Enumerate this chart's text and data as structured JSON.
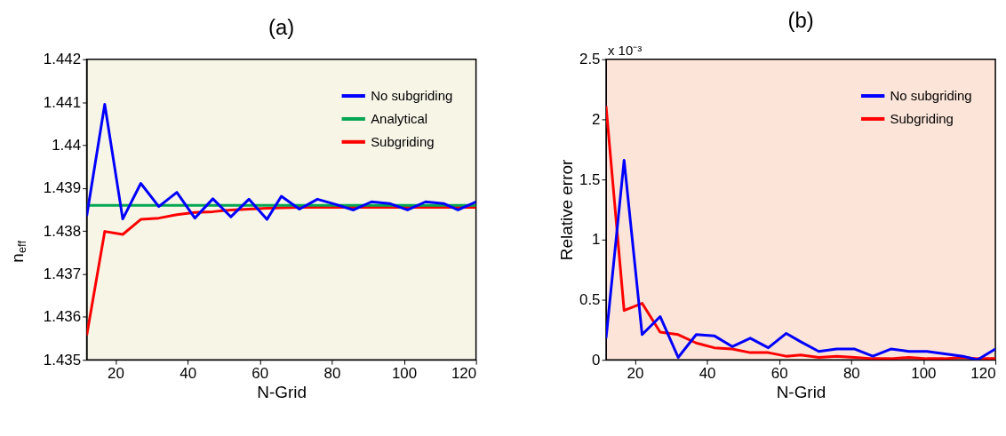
{
  "chart_data": [
    {
      "type": "line",
      "title": "(a)",
      "xlabel": "N-Grid",
      "ylabel": "n$_{eff}$",
      "x": [
        12,
        17,
        22,
        27,
        32,
        37,
        42,
        47,
        52,
        57,
        62,
        66,
        71,
        76,
        81,
        86,
        91,
        96,
        101,
        106,
        111,
        115,
        120
      ],
      "xlim": [
        12,
        120
      ],
      "xticks": [
        20,
        40,
        60,
        80,
        100,
        120
      ],
      "ylim": [
        1.435,
        1.442
      ],
      "yticks": [
        1.435,
        1.436,
        1.437,
        1.438,
        1.439,
        {
          "value": 1.44,
          "label": "1.44"
        },
        1.441,
        1.442
      ],
      "grid": false,
      "legend": "top right",
      "marker": "none",
      "line_style": "solid",
      "series": [
        {
          "name": "No subgriding",
          "color": "#0000ff",
          "values": [
            1.43835,
            1.44095,
            1.43828,
            1.43911,
            1.43857,
            1.4389,
            1.4383,
            1.43875,
            1.43833,
            1.43874,
            1.43827,
            1.43881,
            1.43851,
            1.43874,
            1.43862,
            1.43849,
            1.43868,
            1.43864,
            1.43849,
            1.43868,
            1.43864,
            1.43849,
            1.43868
          ]
        },
        {
          "name": "Analytical",
          "color": "#00a651",
          "values": [
            1.4386,
            1.4386,
            1.4386,
            1.4386,
            1.4386,
            1.4386,
            1.4386,
            1.4386,
            1.4386,
            1.4386,
            1.4386,
            1.4386,
            1.4386,
            1.4386,
            1.4386,
            1.4386,
            1.4386,
            1.4386,
            1.4386,
            1.4386,
            1.4386,
            1.4386,
            1.4386
          ]
        },
        {
          "name": "Subgriding",
          "color": "#ff0000",
          "values": [
            1.43557,
            1.43799,
            1.43792,
            1.43827,
            1.4383,
            1.43838,
            1.43843,
            1.43845,
            1.43849,
            1.43851,
            1.43853,
            1.43854,
            1.43855,
            1.43855,
            1.43855,
            1.43855,
            1.43855,
            1.43855,
            1.43855,
            1.43855,
            1.43855,
            1.43855,
            1.43855
          ]
        }
      ]
    },
    {
      "type": "line",
      "title": "(b)",
      "xlabel": "N-Grid",
      "ylabel": "Relative error",
      "annotations": [
        "x 10⁻³"
      ],
      "x": [
        12,
        17,
        22,
        27,
        32,
        37,
        42,
        47,
        52,
        57,
        62,
        66,
        71,
        76,
        81,
        86,
        91,
        96,
        101,
        106,
        111,
        115,
        120
      ],
      "xlim": [
        12,
        120
      ],
      "xticks": [
        20,
        40,
        60,
        80,
        100,
        120
      ],
      "ylim": [
        0,
        2.5
      ],
      "yticks": [
        0,
        0.5,
        1,
        1.5,
        2,
        2.5
      ],
      "grid": false,
      "legend": "top right",
      "marker": "none",
      "line_style": "solid",
      "series": [
        {
          "name": "No subgriding",
          "color": "#0000ff",
          "values": [
            0.18,
            1.66,
            0.21,
            0.36,
            0.02,
            0.21,
            0.2,
            0.11,
            0.18,
            0.1,
            0.22,
            0.15,
            0.07,
            0.09,
            0.09,
            0.03,
            0.09,
            0.07,
            0.07,
            0.05,
            0.03,
            0.0,
            0.09
          ]
        },
        {
          "name": "Subgriding",
          "color": "#ff0000",
          "values": [
            2.11,
            0.41,
            0.47,
            0.23,
            0.21,
            0.14,
            0.1,
            0.09,
            0.06,
            0.06,
            0.03,
            0.04,
            0.02,
            0.03,
            0.02,
            0.01,
            0.01,
            0.02,
            0.01,
            0.01,
            0.02,
            0.01,
            0.01
          ]
        }
      ]
    }
  ]
}
